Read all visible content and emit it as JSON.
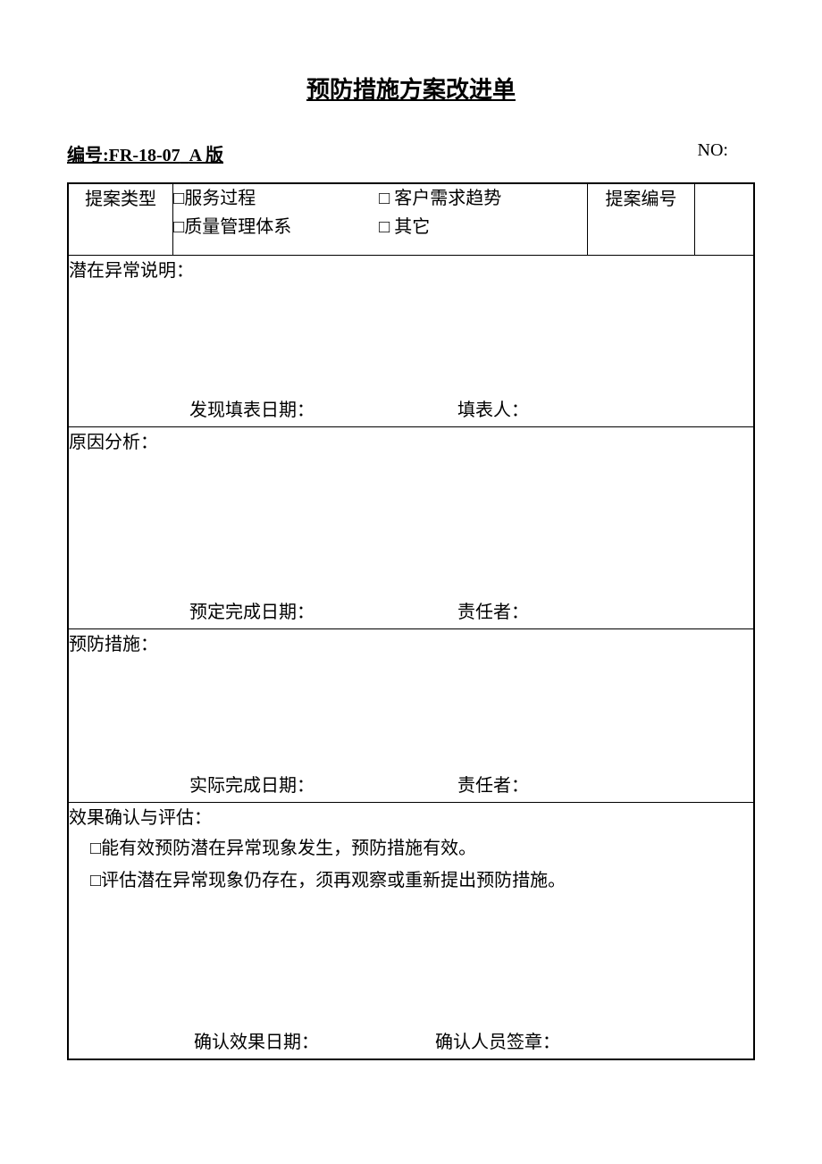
{
  "title": "预防措施方案改进单",
  "header": {
    "doc_no_label": "编号:FR-18-07",
    "version": "A 版",
    "serial_label": "NO:"
  },
  "row1": {
    "type_label": "提案类型",
    "cb1": "□服务过程",
    "cb2": "□ 客户需求趋势",
    "cb3": "□质量管理体系",
    "cb4": "□ 其它",
    "number_label": "提案编号"
  },
  "row2": {
    "label": "潜在异常说明：",
    "date_label": "发现填表日期：",
    "person_label": "填表人："
  },
  "row3": {
    "label": "原因分析：",
    "date_label": "预定完成日期：",
    "person_label": "责任者："
  },
  "row4": {
    "label": "预防措施：",
    "date_label": "实际完成日期：",
    "person_label": "责任者："
  },
  "row5": {
    "label": "效果确认与评估：",
    "opt1": "□能有效预防潜在异常现象发生，预防措施有效。",
    "opt2": "□评估潜在异常现象仍存在，须再观察或重新提出预防措施。",
    "date_label": "确认效果日期：",
    "person_label": "确认人员签章："
  }
}
